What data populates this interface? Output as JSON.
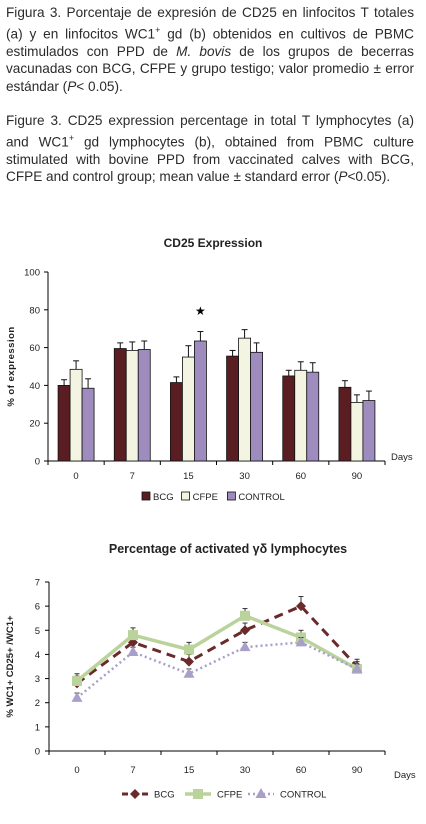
{
  "caption": {
    "es": {
      "pre": "Figura 3. Porcentaje de expresión de CD25 en linfocitos T totales (a) y en linfocitos WC1",
      "sup1": "+",
      "mid1": " gd (b) obtenidos en cultivos de PBMC estimulados con PPD de ",
      "italic": "M. bovis",
      "mid2": " de los grupos de becerras vacunadas con BCG, CFPE y grupo testigo; valor  promedio ± error estándar (",
      "p": "P",
      "post": "< 0.05)."
    },
    "en": {
      "pre": "Figure 3. CD25 expression percentage in total T lymphocytes (a) and WC1",
      "sup1": "+",
      "mid1": " gd lymphocytes (b), obtained from PBMC culture stimulated with bovine PPD from vaccinated calves with BCG, CFPE and control group; mean value ± standard error (",
      "p": "P",
      "post": "<0.05)."
    }
  },
  "chart_data": [
    {
      "type": "bar",
      "title": "CD25 Expression",
      "xlabel": "Days",
      "ylabel": "% of expression",
      "ylim": [
        0,
        100
      ],
      "yticks": [
        "0",
        "20",
        "40",
        "60",
        "80",
        "100"
      ],
      "categories": [
        "0",
        "7",
        "15",
        "30",
        "60",
        "90"
      ],
      "series": [
        {
          "name": "BCG",
          "values": [
            40,
            59.5,
            41.5,
            55.5,
            45,
            39
          ],
          "errors": [
            3,
            3,
            3,
            3,
            3,
            3.5
          ],
          "color": "#5a1e22"
        },
        {
          "name": "CFPE",
          "values": [
            48.5,
            58.5,
            55,
            65,
            48,
            31
          ],
          "errors": [
            4.5,
            4.5,
            6,
            4.5,
            4.5,
            4
          ],
          "color": "#f4f4e2"
        },
        {
          "name": "CONTROL",
          "values": [
            38.5,
            59,
            63.5,
            57.5,
            47,
            32
          ],
          "errors": [
            5,
            4.5,
            5,
            5,
            5,
            5
          ],
          "color": "#9d8cbd"
        }
      ],
      "annotation": {
        "text": "★",
        "category": "15",
        "y": 80
      },
      "legend": "bottom"
    },
    {
      "type": "line",
      "title": "Percentage of activated γδ  lymphocytes",
      "xlabel": "Days",
      "ylabel": "% WC1+  CD25+ /WC1+",
      "ylim": [
        0,
        7
      ],
      "yticks": [
        "0",
        "1",
        "2",
        "3",
        "4",
        "5",
        "6",
        "7"
      ],
      "categories": [
        "0",
        "7",
        "15",
        "30",
        "60",
        "90"
      ],
      "series": [
        {
          "name": "BCG",
          "values": [
            2.8,
            4.5,
            3.7,
            5.0,
            6.0,
            3.5
          ],
          "errors": [
            0.3,
            0.3,
            0.3,
            0.3,
            0.4,
            0.3
          ],
          "color": "#6b2a2a",
          "style": "dashed",
          "marker": "diamond"
        },
        {
          "name": "CFPE",
          "values": [
            2.9,
            4.8,
            4.2,
            5.6,
            4.7,
            3.4
          ],
          "errors": [
            0.3,
            0.3,
            0.3,
            0.3,
            0.3,
            0.3
          ],
          "color": "#b9d39a",
          "style": "solid",
          "marker": "square"
        },
        {
          "name": "CONTROL",
          "values": [
            2.2,
            4.1,
            3.2,
            4.3,
            4.5,
            3.4
          ],
          "errors": [
            0.2,
            0.2,
            0.2,
            0.2,
            0.2,
            0.2
          ],
          "color": "#a99fc9",
          "style": "dotted",
          "marker": "triangle"
        }
      ],
      "legend": "bottom"
    }
  ]
}
